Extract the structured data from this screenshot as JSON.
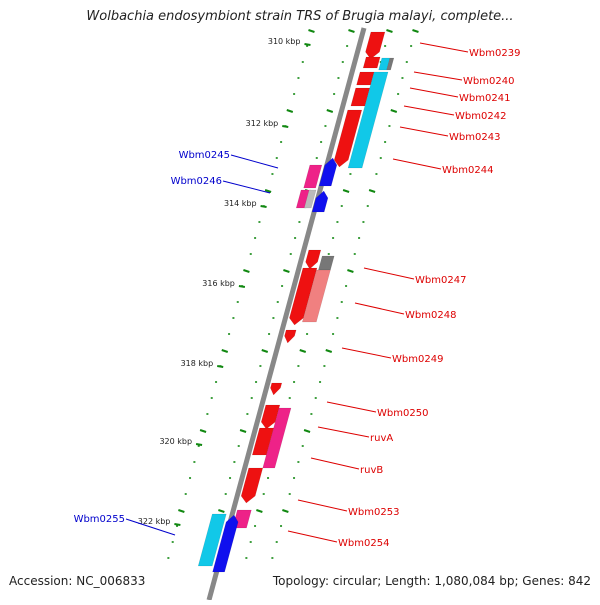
{
  "title": "Wolbachia endosymbiont strain TRS of Brugia malayi, complete...",
  "footer": {
    "accession": "Accession: NC_006833",
    "summary": "Topology: circular; Length: 1,080,084 bp; Genes: 842"
  },
  "colors": {
    "red": "#ee1111",
    "pink": "#ee2288",
    "blue": "#1010ee",
    "cyan": "#11c8e8",
    "salmon": "#f08080",
    "gray": "#777777",
    "forward_label": "#dd0000",
    "reverse_label": "#0000cc",
    "tick": "#118811"
  },
  "kbp_ticks": [
    "310 kbp",
    "312 kbp",
    "314 kbp",
    "316 kbp",
    "318 kbp",
    "320 kbp",
    "322 kbp"
  ],
  "gene_labels": {
    "forward": [
      "Wbm0239",
      "Wbm0240",
      "Wbm0241",
      "Wbm0242",
      "Wbm0243",
      "Wbm0244",
      "Wbm0247",
      "Wbm0248",
      "Wbm0249",
      "Wbm0250",
      "ruvA",
      "ruvB",
      "Wbm0253",
      "Wbm0254"
    ],
    "reverse": [
      "Wbm0245",
      "Wbm0246",
      "Wbm0255"
    ]
  }
}
